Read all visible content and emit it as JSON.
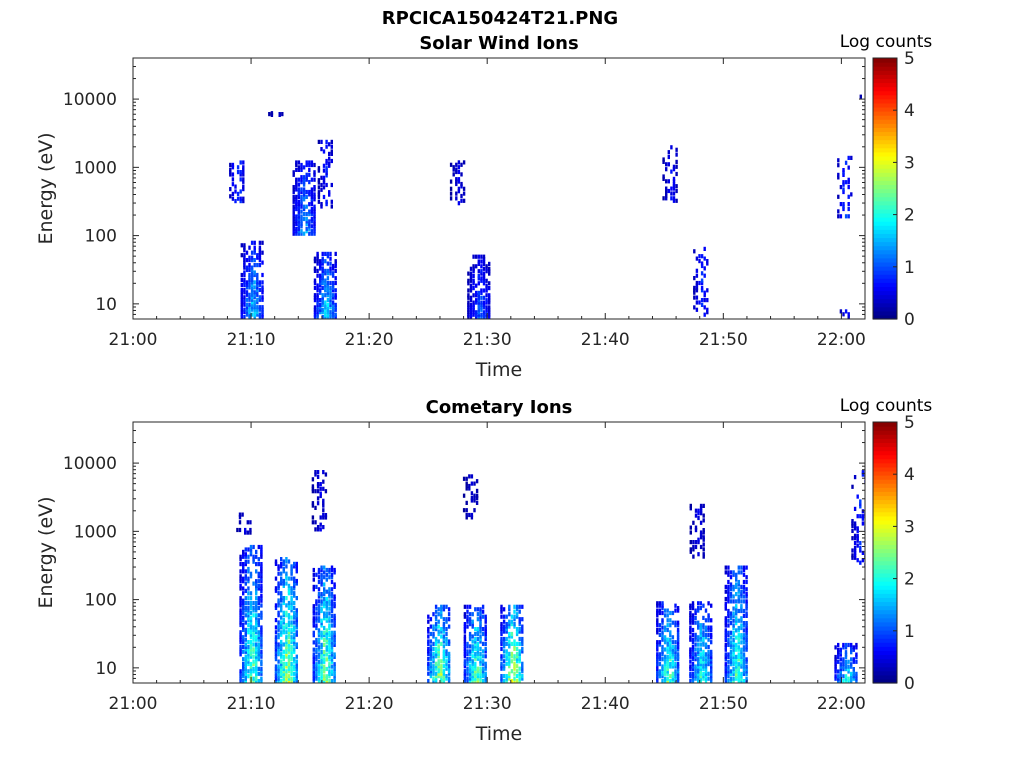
{
  "figure": {
    "title": "RPCICA150424T21.PNG"
  },
  "colorbar": {
    "label": "Log counts",
    "range": [
      0,
      5
    ],
    "ticks": [
      "0",
      "1",
      "2",
      "3",
      "4",
      "5"
    ],
    "colormap": "jet"
  },
  "chart_data": [
    {
      "type": "heatmap",
      "title": "Solar Wind Ions",
      "xlabel": "Time",
      "ylabel": "Energy (eV)",
      "y_scale": "log",
      "x_range": [
        "21:00",
        "22:02"
      ],
      "y_range": [
        6,
        40000
      ],
      "x_ticks": [
        "21:00",
        "21:10",
        "21:20",
        "21:30",
        "21:40",
        "21:50",
        "22:00"
      ],
      "y_ticks": [
        "10",
        "100",
        "1000",
        "10000"
      ],
      "bursts": [
        {
          "t": "21:08.8",
          "e_low": 300,
          "e_high": 1200,
          "peak": 0.9
        },
        {
          "t": "21:10.1",
          "e_low": 6,
          "e_high": 80,
          "peak": 1.7
        },
        {
          "t": "21:12.1",
          "e_low": 5500,
          "e_high": 6000,
          "peak": 0.5
        },
        {
          "t": "21:14.5",
          "e_low": 100,
          "e_high": 1200,
          "peak": 1.5
        },
        {
          "t": "21:16.3",
          "e_low": 6,
          "e_high": 55,
          "peak": 1.8
        },
        {
          "t": "21:16.3",
          "e_low": 250,
          "e_high": 2400,
          "peak": 0.7
        },
        {
          "t": "21:27.5",
          "e_low": 280,
          "e_high": 1200,
          "peak": 0.5
        },
        {
          "t": "21:29.3",
          "e_low": 6,
          "e_high": 50,
          "peak": 1.1
        },
        {
          "t": "21:45.5",
          "e_low": 280,
          "e_high": 2000,
          "peak": 0.6
        },
        {
          "t": "21:48.1",
          "e_low": 6,
          "e_high": 65,
          "peak": 0.8
        },
        {
          "t": "22:00.3",
          "e_low": 180,
          "e_high": 1400,
          "peak": 0.9
        },
        {
          "t": "22:00.3",
          "e_low": 6,
          "e_high": 8,
          "peak": 0.6
        },
        {
          "t": "22:02.2",
          "e_low": 9500,
          "e_high": 10500,
          "peak": 0.5
        }
      ]
    },
    {
      "type": "heatmap",
      "title": "Cometary Ions",
      "xlabel": "Time",
      "ylabel": "Energy (eV)",
      "y_scale": "log",
      "x_range": [
        "21:00",
        "22:02"
      ],
      "y_range": [
        6,
        40000
      ],
      "x_ticks": [
        "21:00",
        "21:10",
        "21:20",
        "21:30",
        "21:40",
        "21:50",
        "22:00"
      ],
      "y_ticks": [
        "10",
        "100",
        "1000",
        "10000"
      ],
      "bursts": [
        {
          "t": "21:09.4",
          "e_low": 900,
          "e_high": 1800,
          "peak": 0.5
        },
        {
          "t": "21:10.0",
          "e_low": 6,
          "e_high": 600,
          "peak": 2.4
        },
        {
          "t": "21:13.0",
          "e_low": 6,
          "e_high": 400,
          "peak": 2.9
        },
        {
          "t": "21:16.2",
          "e_low": 6,
          "e_high": 300,
          "peak": 2.6
        },
        {
          "t": "21:15.8",
          "e_low": 1000,
          "e_high": 7500,
          "peak": 0.5
        },
        {
          "t": "21:25.9",
          "e_low": 6,
          "e_high": 80,
          "peak": 2.8
        },
        {
          "t": "21:29.0",
          "e_low": 6,
          "e_high": 80,
          "peak": 2.5
        },
        {
          "t": "21:32.1",
          "e_low": 6,
          "e_high": 80,
          "peak": 3.0
        },
        {
          "t": "21:28.6",
          "e_low": 1500,
          "e_high": 6500,
          "peak": 0.4
        },
        {
          "t": "21:45.3",
          "e_low": 6,
          "e_high": 90,
          "peak": 2.4
        },
        {
          "t": "21:48.1",
          "e_low": 6,
          "e_high": 90,
          "peak": 2.1
        },
        {
          "t": "21:51.1",
          "e_low": 6,
          "e_high": 300,
          "peak": 2.3
        },
        {
          "t": "21:47.8",
          "e_low": 400,
          "e_high": 2400,
          "peak": 0.5
        },
        {
          "t": "22:00.4",
          "e_low": 6,
          "e_high": 22,
          "peak": 2.0
        },
        {
          "t": "22:01.5",
          "e_low": 300,
          "e_high": 7500,
          "peak": 0.8
        }
      ]
    }
  ]
}
